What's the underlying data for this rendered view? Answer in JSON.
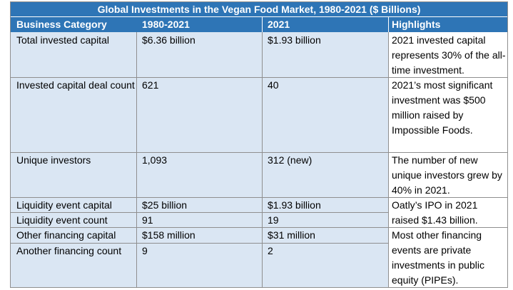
{
  "title": "Global Investments in the Vegan Food Market, 1980-2021 ($ Billions)",
  "headers": {
    "category": "Business Category",
    "period": "1980-2021",
    "year": "2021",
    "highlights": "Highlights"
  },
  "rows": [
    {
      "category": "Total invested capital",
      "period": "$6.36 billion",
      "year": "$1.93 billion"
    },
    {
      "category": "Invested capital deal count",
      "period": "621",
      "year": "40"
    },
    {
      "category": "Unique investors",
      "period": "1,093",
      "year": "312 (new)"
    },
    {
      "category": "Liquidity event capital",
      "period": "$25 billion",
      "year": "$1.93 billion"
    },
    {
      "category": "Liquidity event count",
      "period": "91",
      "year": "19"
    },
    {
      "category": "Other financing capital",
      "period": "$158 million",
      "year": "$31 million"
    },
    {
      "category": "Another financing count",
      "period": "9",
      "year": "2"
    }
  ],
  "highlights": [
    "2021 invested capital represents 30% of the all-time investment.",
    "2021’s most significant investment was $500 million raised by Impossible Foods.",
    "The number of new unique investors grew by 40% in 2021.",
    "Oatly’s IPO in 2021 raised $1.43 billion.",
    "Most other financing events are private investments in public equity (PIPEs)."
  ],
  "colors": {
    "header_bg": "#2e75b6",
    "row_bg": "#dae6f3",
    "highlight_bg": "#ffffff",
    "border": "#8f8f8f"
  }
}
